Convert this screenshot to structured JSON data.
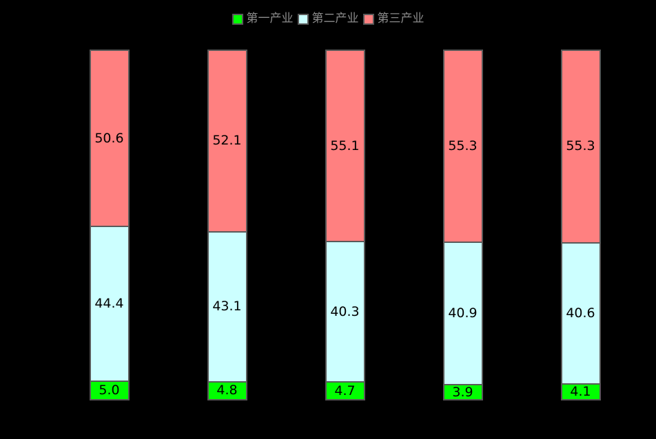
{
  "chart_data": {
    "type": "bar",
    "stacked": true,
    "orientation": "vertical",
    "title": "",
    "xlabel": "",
    "ylabel": "",
    "ylim": [
      0,
      100
    ],
    "grid": false,
    "background_color": "#000000",
    "bar_border_color": "#595959",
    "data_label_color": "#000000",
    "legend_position": "top-center",
    "legend_text_color": "#8C8C8C",
    "categories": [
      "",
      "",
      "",
      "",
      ""
    ],
    "series": [
      {
        "name": "第一产业",
        "color": "#00FF00",
        "values": [
          5.0,
          4.8,
          4.7,
          3.9,
          4.1
        ]
      },
      {
        "name": "第二产业",
        "color": "#CCFFFF",
        "values": [
          44.4,
          43.1,
          40.3,
          40.9,
          40.6
        ]
      },
      {
        "name": "第三产业",
        "color": "#FF8080",
        "values": [
          50.6,
          52.1,
          55.1,
          55.3,
          55.3
        ]
      }
    ]
  }
}
